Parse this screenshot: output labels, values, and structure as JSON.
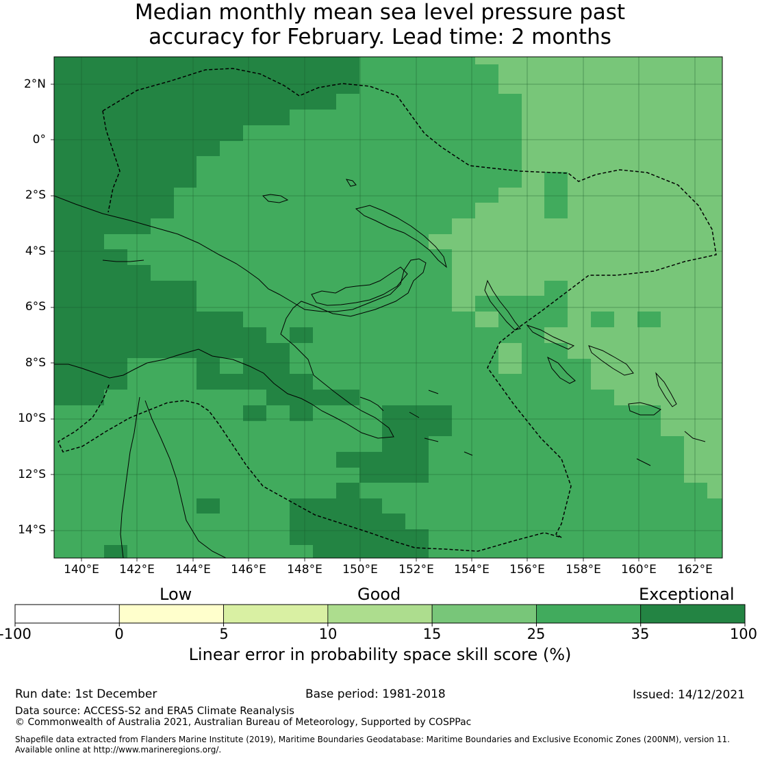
{
  "title": {
    "line1": "Median monthly mean sea level pressure past",
    "line2": "accuracy for February. Lead time: 2 months"
  },
  "map": {
    "lat_ticks": [
      "2°N",
      "0°",
      "2°S",
      "4°S",
      "6°S",
      "8°S",
      "10°S",
      "12°S",
      "14°S"
    ],
    "lon_ticks": [
      "140°E",
      "142°E",
      "144°E",
      "146°E",
      "148°E",
      "150°E",
      "152°E",
      "154°E",
      "156°E",
      "158°E",
      "160°E",
      "162°E"
    ],
    "colors": {
      "exceptional": "#238443",
      "good_high": "#41ab5d",
      "good_mid": "#78c679",
      "good_low": "#addd8e",
      "low_high": "#d9f0a3",
      "low": "#ffffcc",
      "negative": "#ffffff"
    }
  },
  "colorbar": {
    "categories": [
      "Low",
      "Good",
      "Exceptional"
    ],
    "ticks": [
      "-100",
      "0",
      "5",
      "10",
      "15",
      "25",
      "35",
      "100"
    ],
    "colors": [
      "#ffffff",
      "#ffffcc",
      "#d9f0a3",
      "#addd8e",
      "#78c679",
      "#41ab5d",
      "#238443"
    ],
    "caption": "Linear error in probability space skill score (%)"
  },
  "footer": {
    "run_date": "Run date: 1st December",
    "base_period": "Base period: 1981-2018",
    "issued": "Issued: 14/12/2021",
    "data_source": "Data source: ACCESS-S2 and ERA5 Climate Reanalysis",
    "copyright": "© Commonwealth of Australia 2021, Australian Bureau of Meteorology, Supported by COSPPac",
    "shapefile_line1": "Shapefile data extracted from Flanders Marine Institute (2019), Maritime Boundaries Geodatabase: Maritime Boundaries and Exclusive Economic Zones (200NM), version 11.",
    "shapefile_line2": "Available online at http://www.marineregions.org/."
  }
}
